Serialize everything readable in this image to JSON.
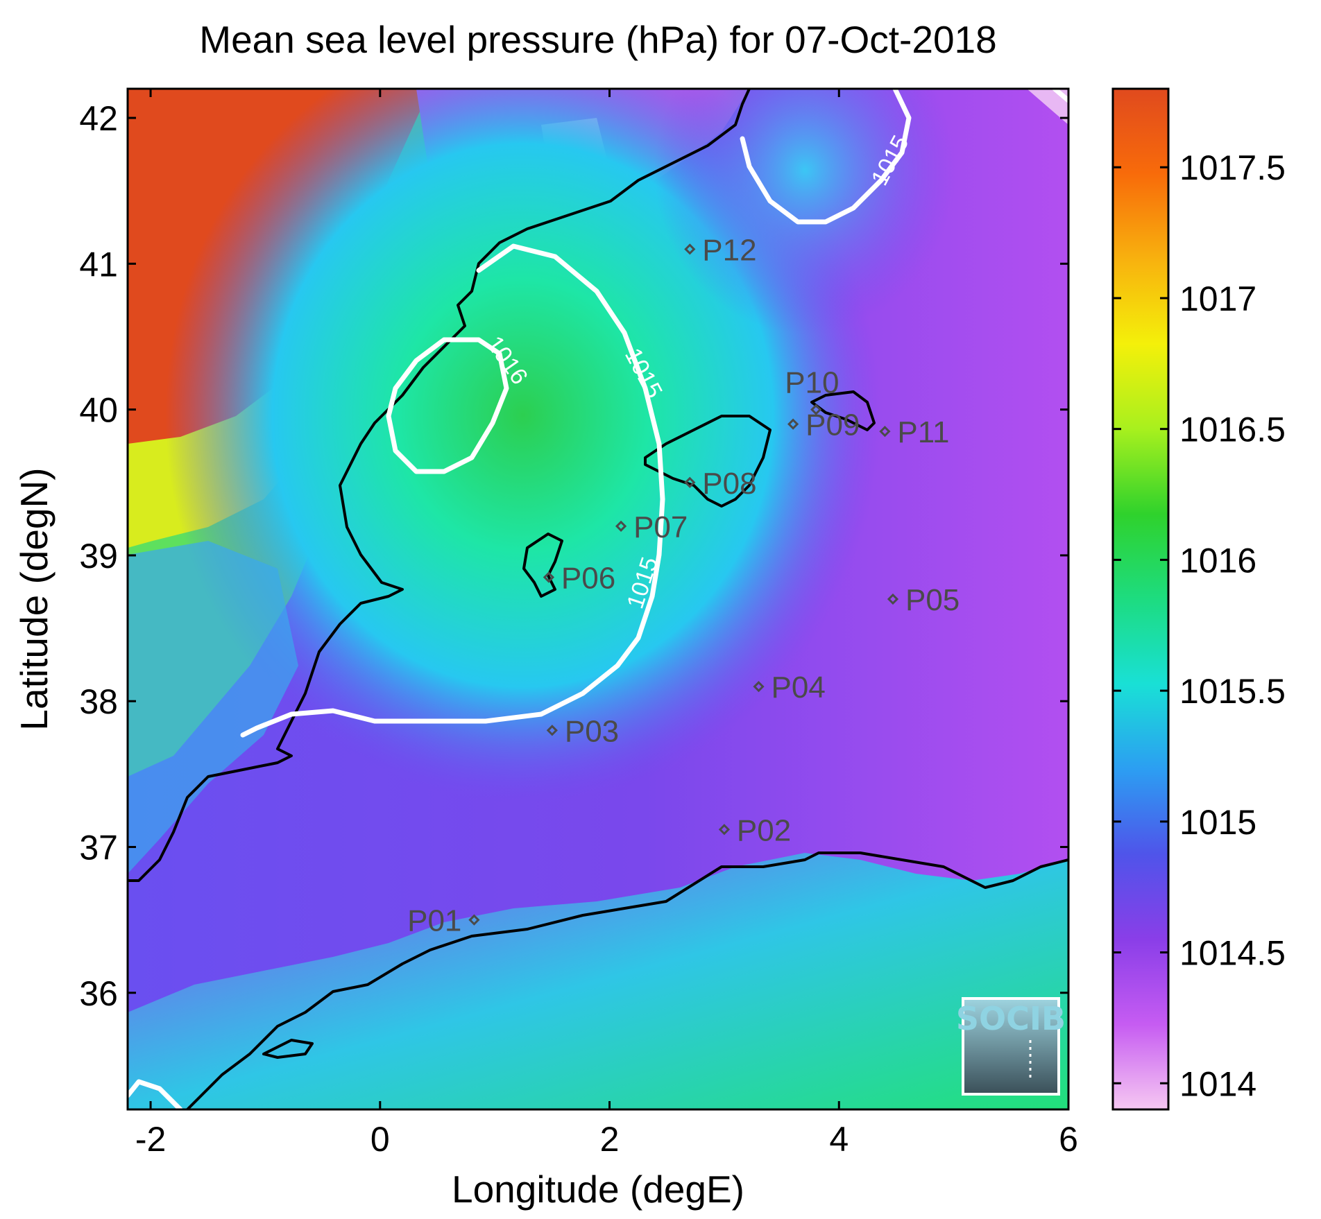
{
  "title": "Mean sea level pressure (hPa) for 07-Oct-2018",
  "xlabel": "Longitude (degE)",
  "ylabel": "Latitude (degN)",
  "xlim": [
    -2.2,
    6.0
  ],
  "ylim": [
    35.2,
    42.2
  ],
  "xticks": [
    "-2",
    "0",
    "2",
    "4",
    "6"
  ],
  "yticks": [
    "36",
    "37",
    "38",
    "39",
    "40",
    "41",
    "42"
  ],
  "colorbar": {
    "min": 1013.9,
    "max": 1017.8,
    "ticks": [
      "1014",
      "1014.5",
      "1015",
      "1015.5",
      "1016",
      "1016.5",
      "1017",
      "1017.5"
    ],
    "colors": [
      "#f6c8f2",
      "#c65cf2",
      "#8a3ee8",
      "#4f54ea",
      "#2c9ef2",
      "#19e0d6",
      "#1ddc80",
      "#2fd22c",
      "#a8f01e",
      "#f4f00a",
      "#f8b10e",
      "#f86b0a",
      "#e04a1e"
    ]
  },
  "contours": [
    {
      "label": "1015"
    },
    {
      "label": "1015"
    },
    {
      "label": "1015"
    },
    {
      "label": "1016"
    }
  ],
  "stations": [
    {
      "name": "P01",
      "lon": 0.82,
      "lat": 36.5
    },
    {
      "name": "P02",
      "lon": 3.0,
      "lat": 37.12
    },
    {
      "name": "P03",
      "lon": 1.5,
      "lat": 37.8
    },
    {
      "name": "P04",
      "lon": 3.3,
      "lat": 38.1
    },
    {
      "name": "P05",
      "lon": 4.47,
      "lat": 38.7
    },
    {
      "name": "P06",
      "lon": 1.47,
      "lat": 38.85
    },
    {
      "name": "P07",
      "lon": 2.1,
      "lat": 39.2
    },
    {
      "name": "P08",
      "lon": 2.7,
      "lat": 39.5
    },
    {
      "name": "P09",
      "lon": 3.6,
      "lat": 39.9
    },
    {
      "name": "P10",
      "lon": 3.8,
      "lat": 40.0
    },
    {
      "name": "P11",
      "lon": 4.4,
      "lat": 39.85
    },
    {
      "name": "P12",
      "lon": 2.7,
      "lat": 41.1
    }
  ],
  "logo": {
    "text": "SOCIB"
  }
}
